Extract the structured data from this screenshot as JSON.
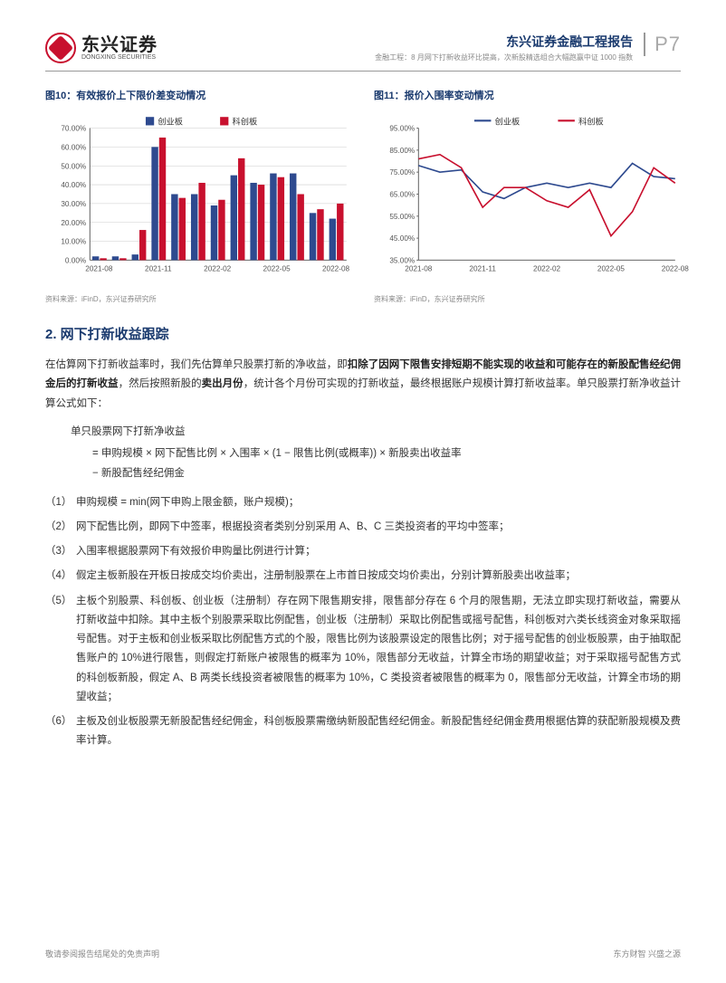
{
  "header": {
    "logo_cn": "东兴证券",
    "logo_en": "DONGXING SECURITIES",
    "report_title": "东兴证券金融工程报告",
    "report_sub": "金融工程：8 月网下打新收益环比提高，次新股精选组合大幅跑赢中证 1000 指数",
    "page_num": "P7"
  },
  "chart10": {
    "title": "图10：有效报价上下限价差变动情况",
    "type": "bar",
    "legend": [
      "创业板",
      "科创板"
    ],
    "legend_colors": [
      "#2e4a8f",
      "#c8102e"
    ],
    "categories": [
      "2021-08",
      "",
      "",
      "2021-11",
      "",
      "",
      "2022-02",
      "",
      "",
      "2022-05",
      "",
      "",
      "2022-08"
    ],
    "series1": [
      2,
      2,
      3,
      60,
      35,
      35,
      29,
      45,
      41,
      46,
      46,
      25,
      22
    ],
    "series2": [
      1,
      1,
      16,
      65,
      33,
      41,
      32,
      54,
      40,
      44,
      35,
      27,
      30
    ],
    "ylim": [
      0,
      70
    ],
    "ytick_step": 10,
    "ysuffix": ".00%",
    "bar_colors": [
      "#2e4a8f",
      "#c8102e"
    ],
    "grid_color": "#cccccc",
    "axis_color": "#666",
    "background_color": "#ffffff",
    "source": "资料来源：iFinD，东兴证券研究所"
  },
  "chart11": {
    "title": "图11：报价入围率变动情况",
    "type": "line",
    "legend": [
      "创业板",
      "科创板"
    ],
    "legend_colors": [
      "#2e4a8f",
      "#c8102e"
    ],
    "categories": [
      "2021-08",
      "",
      "",
      "2021-11",
      "",
      "",
      "2022-02",
      "",
      "",
      "2022-05",
      "",
      "",
      "2022-08"
    ],
    "series1": [
      78,
      75,
      76,
      66,
      63,
      68,
      70,
      68,
      70,
      68,
      79,
      73,
      72
    ],
    "series2": [
      81,
      83,
      77,
      59,
      68,
      68,
      62,
      59,
      67,
      46,
      57,
      77,
      70
    ],
    "ylim": [
      35,
      95
    ],
    "ytick_step": 10,
    "ysuffix": ".00%",
    "line_colors": [
      "#2e4a8f",
      "#c8102e"
    ],
    "grid_color": "#cccccc",
    "axis_color": "#666",
    "background_color": "#ffffff",
    "source": "资料来源：iFinD，东兴证券研究所"
  },
  "section": {
    "title": "2. 网下打新收益跟踪",
    "intro_a": "在估算网下打新收益率时，我们先估算单只股票打新的净收益，即",
    "intro_em": "扣除了因网下限售安排短期不能实现的收益和可能存在的新股配售经纪佣金后的打新收益",
    "intro_b": "，然后按照新股的",
    "intro_em2": "卖出月份",
    "intro_c": "，统计各个月份可实现的打新收益，最终根据账户规模计算打新收益率。单只股票打新净收益计算公式如下：",
    "formula_label": "单只股票网下打新净收益",
    "formula_line1": "= 申购规模 × 网下配售比例 × 入围率 × (1 − 限售比例(或概率)) × 新股卖出收益率",
    "formula_line2": "− 新股配售经纪佣金",
    "items": [
      {
        "n": "（1）",
        "t": "申购规模 = min(网下申购上限金额，账户规模)；"
      },
      {
        "n": "（2）",
        "t": "网下配售比例，即网下中签率，根据投资者类别分别采用 A、B、C 三类投资者的平均中签率；"
      },
      {
        "n": "（3）",
        "t": "入围率根据股票网下有效报价申购量比例进行计算；"
      },
      {
        "n": "（4）",
        "t": "假定主板新股在开板日按成交均价卖出，注册制股票在上市首日按成交均价卖出，分别计算新股卖出收益率；"
      },
      {
        "n": "（5）",
        "t": "主板个别股票、科创板、创业板（注册制）存在网下限售期安排，限售部分存在 6 个月的限售期，无法立即实现打新收益，需要从打新收益中扣除。其中主板个别股票采取比例配售，创业板（注册制）采取比例配售或摇号配售，科创板对六类长线资金对象采取摇号配售。对于主板和创业板采取比例配售方式的个股，限售比例为该股票设定的限售比例；对于摇号配售的创业板股票，由于抽取配售账户的 10%进行限售，则假定打新账户被限售的概率为 10%，限售部分无收益，计算全市场的期望收益；对于采取摇号配售方式的科创板新股，假定 A、B 两类长线投资者被限售的概率为 10%，C 类投资者被限售的概率为 0，限售部分无收益，计算全市场的期望收益；"
      },
      {
        "n": "（6）",
        "t": "主板及创业板股票无新股配售经纪佣金，科创板股票需缴纳新股配售经纪佣金。新股配售经纪佣金费用根据估算的获配新股规模及费率计算。"
      }
    ]
  },
  "footer": {
    "left": "敬请参阅报告结尾处的免责声明",
    "right": "东方财智 兴盛之源"
  }
}
